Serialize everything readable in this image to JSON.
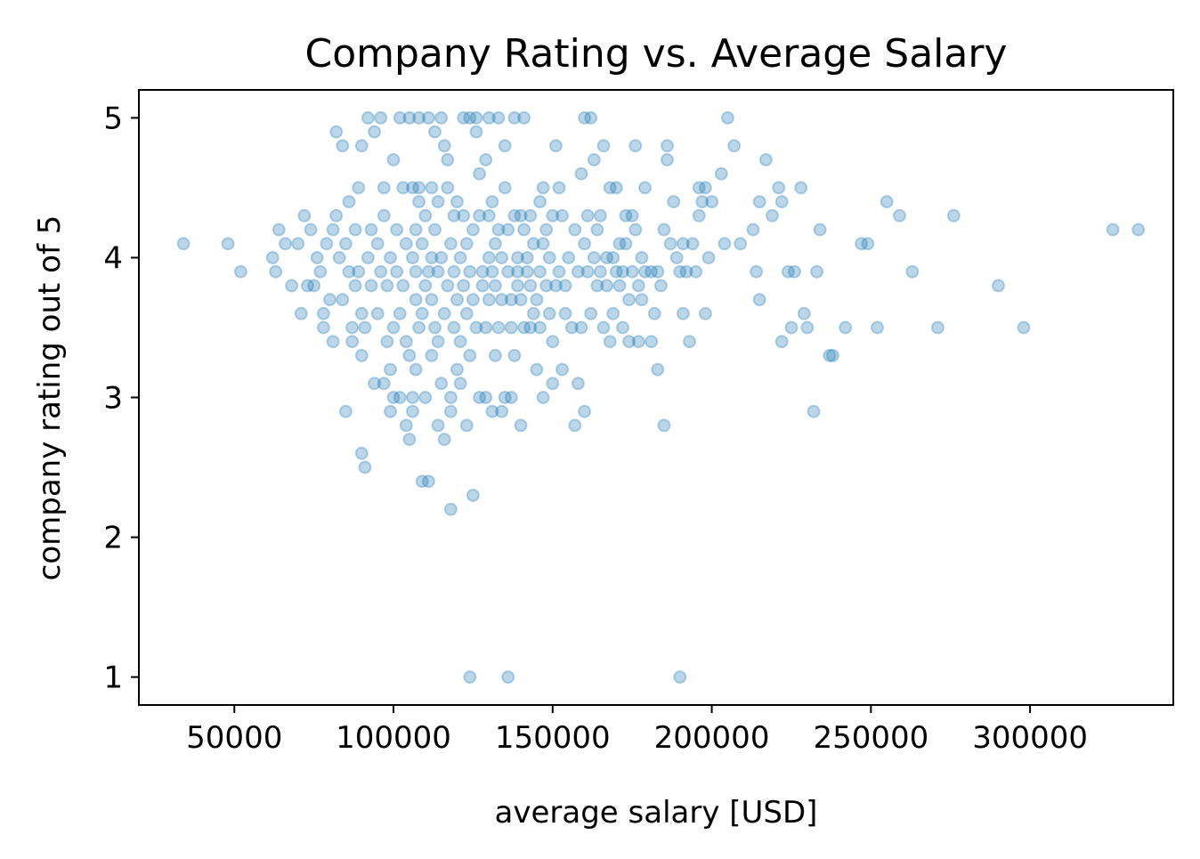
{
  "chart_data": {
    "type": "scatter",
    "title": "Company Rating vs. Average Salary",
    "xlabel": "average salary [USD]",
    "ylabel": "company rating out of 5",
    "xlim": [
      20000,
      345000
    ],
    "ylim": [
      0.8,
      5.2
    ],
    "xticks": [
      50000,
      100000,
      150000,
      200000,
      250000,
      300000
    ],
    "xtick_labels": [
      "50000",
      "100000",
      "150000",
      "200000",
      "250000",
      "300000"
    ],
    "yticks": [
      1,
      2,
      3,
      4,
      5
    ],
    "ytick_labels": [
      "1",
      "2",
      "3",
      "4",
      "5"
    ],
    "grid": false,
    "color": "#1f77b4",
    "points": [
      [
        34000,
        4.1
      ],
      [
        48000,
        4.1
      ],
      [
        52000,
        3.9
      ],
      [
        62000,
        4.0
      ],
      [
        63000,
        3.9
      ],
      [
        64000,
        4.2
      ],
      [
        66000,
        4.1
      ],
      [
        68000,
        3.8
      ],
      [
        70000,
        4.1
      ],
      [
        71000,
        3.6
      ],
      [
        72000,
        4.3
      ],
      [
        73000,
        3.8
      ],
      [
        74000,
        4.2
      ],
      [
        75000,
        3.8
      ],
      [
        76000,
        4.0
      ],
      [
        77000,
        3.9
      ],
      [
        78000,
        3.5
      ],
      [
        78000,
        3.6
      ],
      [
        79000,
        4.1
      ],
      [
        80000,
        3.7
      ],
      [
        81000,
        4.2
      ],
      [
        81000,
        3.4
      ],
      [
        82000,
        4.9
      ],
      [
        82000,
        4.3
      ],
      [
        83000,
        4.0
      ],
      [
        84000,
        3.7
      ],
      [
        84000,
        4.8
      ],
      [
        85000,
        2.9
      ],
      [
        85000,
        4.1
      ],
      [
        86000,
        3.9
      ],
      [
        86000,
        4.4
      ],
      [
        87000,
        3.5
      ],
      [
        87000,
        3.4
      ],
      [
        88000,
        4.2
      ],
      [
        88000,
        3.8
      ],
      [
        89000,
        4.5
      ],
      [
        89000,
        3.9
      ],
      [
        90000,
        3.6
      ],
      [
        90000,
        4.8
      ],
      [
        90000,
        3.3
      ],
      [
        90000,
        2.6
      ],
      [
        91000,
        2.5
      ],
      [
        91000,
        3.5
      ],
      [
        92000,
        4.0
      ],
      [
        92000,
        5.0
      ],
      [
        93000,
        3.8
      ],
      [
        93000,
        4.2
      ],
      [
        94000,
        4.9
      ],
      [
        94000,
        3.1
      ],
      [
        95000,
        3.6
      ],
      [
        95000,
        4.1
      ],
      [
        96000,
        3.9
      ],
      [
        96000,
        5.0
      ],
      [
        97000,
        4.3
      ],
      [
        97000,
        3.1
      ],
      [
        97000,
        4.5
      ],
      [
        98000,
        3.8
      ],
      [
        98000,
        3.4
      ],
      [
        99000,
        2.9
      ],
      [
        99000,
        3.2
      ],
      [
        99000,
        4.0
      ],
      [
        100000,
        3.5
      ],
      [
        100000,
        4.7
      ],
      [
        100000,
        3.0
      ],
      [
        101000,
        3.9
      ],
      [
        101000,
        4.2
      ],
      [
        102000,
        5.0
      ],
      [
        102000,
        3.6
      ],
      [
        102000,
        3.0
      ],
      [
        103000,
        4.5
      ],
      [
        103000,
        3.8
      ],
      [
        104000,
        3.4
      ],
      [
        104000,
        2.8
      ],
      [
        104000,
        4.1
      ],
      [
        105000,
        5.0
      ],
      [
        105000,
        3.3
      ],
      [
        105000,
        2.7
      ],
      [
        106000,
        4.0
      ],
      [
        106000,
        4.5
      ],
      [
        106000,
        3.0
      ],
      [
        106000,
        2.9
      ],
      [
        107000,
        3.7
      ],
      [
        107000,
        3.9
      ],
      [
        107000,
        3.2
      ],
      [
        107000,
        4.2
      ],
      [
        108000,
        5.0
      ],
      [
        108000,
        4.4
      ],
      [
        108000,
        3.5
      ],
      [
        108000,
        4.5
      ],
      [
        109000,
        2.4
      ],
      [
        109000,
        3.6
      ],
      [
        109000,
        4.1
      ],
      [
        110000,
        3.8
      ],
      [
        110000,
        4.3
      ],
      [
        110000,
        3.0
      ],
      [
        111000,
        2.4
      ],
      [
        111000,
        5.0
      ],
      [
        111000,
        3.9
      ],
      [
        112000,
        4.0
      ],
      [
        112000,
        3.7
      ],
      [
        112000,
        3.3
      ],
      [
        112000,
        4.5
      ],
      [
        113000,
        4.9
      ],
      [
        113000,
        4.2
      ],
      [
        113000,
        3.5
      ],
      [
        114000,
        3.9
      ],
      [
        114000,
        4.4
      ],
      [
        114000,
        3.4
      ],
      [
        114000,
        2.8
      ],
      [
        115000,
        5.0
      ],
      [
        115000,
        4.0
      ],
      [
        115000,
        3.1
      ],
      [
        116000,
        4.8
      ],
      [
        116000,
        3.6
      ],
      [
        116000,
        2.7
      ],
      [
        117000,
        4.7
      ],
      [
        117000,
        3.8
      ],
      [
        117000,
        4.5
      ],
      [
        118000,
        4.1
      ],
      [
        118000,
        3.0
      ],
      [
        118000,
        2.9
      ],
      [
        118000,
        2.2
      ],
      [
        119000,
        4.3
      ],
      [
        119000,
        3.9
      ],
      [
        119000,
        3.5
      ],
      [
        120000,
        3.7
      ],
      [
        120000,
        3.2
      ],
      [
        120000,
        4.4
      ],
      [
        121000,
        3.1
      ],
      [
        121000,
        4.0
      ],
      [
        121000,
        3.4
      ],
      [
        122000,
        4.3
      ],
      [
        122000,
        3.8
      ],
      [
        122000,
        5.0
      ],
      [
        123000,
        2.8
      ],
      [
        123000,
        3.6
      ],
      [
        123000,
        4.1
      ],
      [
        124000,
        1.0
      ],
      [
        124000,
        3.3
      ],
      [
        124000,
        3.9
      ],
      [
        124000,
        5.0
      ],
      [
        125000,
        2.3
      ],
      [
        125000,
        4.2
      ],
      [
        125000,
        3.7
      ],
      [
        126000,
        4.9
      ],
      [
        126000,
        3.5
      ],
      [
        126000,
        5.0
      ],
      [
        127000,
        4.3
      ],
      [
        127000,
        3.0
      ],
      [
        127000,
        4.6
      ],
      [
        128000,
        3.9
      ],
      [
        128000,
        3.8
      ],
      [
        129000,
        4.7
      ],
      [
        129000,
        3.0
      ],
      [
        129000,
        3.5
      ],
      [
        130000,
        4.0
      ],
      [
        130000,
        3.7
      ],
      [
        130000,
        4.3
      ],
      [
        130000,
        5.0
      ],
      [
        131000,
        3.9
      ],
      [
        131000,
        2.9
      ],
      [
        131000,
        4.4
      ],
      [
        132000,
        3.8
      ],
      [
        132000,
        4.1
      ],
      [
        132000,
        3.3
      ],
      [
        133000,
        4.2
      ],
      [
        133000,
        3.5
      ],
      [
        133000,
        5.0
      ],
      [
        134000,
        4.0
      ],
      [
        134000,
        3.7
      ],
      [
        134000,
        2.9
      ],
      [
        135000,
        4.5
      ],
      [
        135000,
        3.0
      ],
      [
        135000,
        4.8
      ],
      [
        136000,
        1.0
      ],
      [
        136000,
        3.9
      ],
      [
        136000,
        4.2
      ],
      [
        137000,
        3.5
      ],
      [
        137000,
        3.7
      ],
      [
        137000,
        3.0
      ],
      [
        138000,
        4.3
      ],
      [
        138000,
        3.3
      ],
      [
        138000,
        5.0
      ],
      [
        139000,
        4.0
      ],
      [
        139000,
        3.8
      ],
      [
        139000,
        3.9
      ],
      [
        140000,
        2.8
      ],
      [
        140000,
        4.3
      ],
      [
        140000,
        3.7
      ],
      [
        141000,
        5.0
      ],
      [
        141000,
        4.2
      ],
      [
        141000,
        3.5
      ],
      [
        142000,
        4.0
      ],
      [
        142000,
        3.9
      ],
      [
        143000,
        4.3
      ],
      [
        143000,
        3.5
      ],
      [
        143000,
        3.8
      ],
      [
        144000,
        3.6
      ],
      [
        144000,
        4.1
      ],
      [
        145000,
        3.2
      ],
      [
        145000,
        3.7
      ],
      [
        146000,
        4.4
      ],
      [
        146000,
        3.9
      ],
      [
        146000,
        3.5
      ],
      [
        147000,
        4.5
      ],
      [
        147000,
        4.1
      ],
      [
        147000,
        3.0
      ],
      [
        148000,
        4.2
      ],
      [
        148000,
        3.8
      ],
      [
        149000,
        3.6
      ],
      [
        149000,
        4.0
      ],
      [
        150000,
        3.4
      ],
      [
        150000,
        3.1
      ],
      [
        150000,
        4.3
      ],
      [
        151000,
        4.8
      ],
      [
        151000,
        3.8
      ],
      [
        152000,
        4.5
      ],
      [
        152000,
        3.9
      ],
      [
        153000,
        3.2
      ],
      [
        153000,
        4.3
      ],
      [
        154000,
        3.6
      ],
      [
        154000,
        3.8
      ],
      [
        155000,
        4.0
      ],
      [
        156000,
        3.5
      ],
      [
        157000,
        2.8
      ],
      [
        157000,
        4.2
      ],
      [
        158000,
        3.1
      ],
      [
        158000,
        3.9
      ],
      [
        159000,
        4.6
      ],
      [
        159000,
        3.5
      ],
      [
        160000,
        5.0
      ],
      [
        160000,
        4.1
      ],
      [
        160000,
        2.9
      ],
      [
        161000,
        3.9
      ],
      [
        161000,
        4.3
      ],
      [
        162000,
        5.0
      ],
      [
        162000,
        3.6
      ],
      [
        163000,
        4.0
      ],
      [
        163000,
        4.7
      ],
      [
        164000,
        3.8
      ],
      [
        164000,
        4.2
      ],
      [
        165000,
        3.9
      ],
      [
        165000,
        4.3
      ],
      [
        166000,
        4.8
      ],
      [
        166000,
        3.5
      ],
      [
        167000,
        4.0
      ],
      [
        167000,
        3.8
      ],
      [
        168000,
        3.4
      ],
      [
        168000,
        4.5
      ],
      [
        169000,
        3.6
      ],
      [
        169000,
        4.0
      ],
      [
        170000,
        3.9
      ],
      [
        170000,
        4.5
      ],
      [
        171000,
        4.1
      ],
      [
        171000,
        3.8
      ],
      [
        172000,
        3.5
      ],
      [
        172000,
        3.9
      ],
      [
        173000,
        4.1
      ],
      [
        173000,
        4.3
      ],
      [
        174000,
        3.4
      ],
      [
        174000,
        3.7
      ],
      [
        175000,
        4.3
      ],
      [
        175000,
        3.9
      ],
      [
        176000,
        4.8
      ],
      [
        176000,
        4.2
      ],
      [
        177000,
        3.4
      ],
      [
        177000,
        3.8
      ],
      [
        178000,
        4.0
      ],
      [
        178000,
        3.7
      ],
      [
        179000,
        4.5
      ],
      [
        179000,
        3.9
      ],
      [
        181000,
        3.4
      ],
      [
        181000,
        3.9
      ],
      [
        182000,
        3.6
      ],
      [
        183000,
        3.9
      ],
      [
        183000,
        3.2
      ],
      [
        184000,
        3.8
      ],
      [
        185000,
        4.2
      ],
      [
        185000,
        2.8
      ],
      [
        186000,
        4.8
      ],
      [
        186000,
        4.7
      ],
      [
        187000,
        4.1
      ],
      [
        188000,
        4.4
      ],
      [
        189000,
        4.0
      ],
      [
        190000,
        3.9
      ],
      [
        190000,
        1.0
      ],
      [
        191000,
        3.6
      ],
      [
        191000,
        4.1
      ],
      [
        192000,
        3.9
      ],
      [
        193000,
        3.4
      ],
      [
        194000,
        4.1
      ],
      [
        195000,
        3.9
      ],
      [
        196000,
        4.3
      ],
      [
        196000,
        4.5
      ],
      [
        197000,
        4.4
      ],
      [
        198000,
        3.6
      ],
      [
        198000,
        4.5
      ],
      [
        199000,
        4.0
      ],
      [
        200000,
        4.4
      ],
      [
        203000,
        4.6
      ],
      [
        204000,
        4.1
      ],
      [
        205000,
        5.0
      ],
      [
        207000,
        4.8
      ],
      [
        209000,
        4.1
      ],
      [
        213000,
        4.2
      ],
      [
        214000,
        3.9
      ],
      [
        215000,
        4.4
      ],
      [
        215000,
        3.7
      ],
      [
        217000,
        4.7
      ],
      [
        219000,
        4.3
      ],
      [
        221000,
        4.5
      ],
      [
        222000,
        4.4
      ],
      [
        222000,
        3.4
      ],
      [
        224000,
        3.9
      ],
      [
        225000,
        3.5
      ],
      [
        226000,
        3.9
      ],
      [
        228000,
        4.5
      ],
      [
        229000,
        3.6
      ],
      [
        230000,
        3.5
      ],
      [
        232000,
        2.9
      ],
      [
        233000,
        3.9
      ],
      [
        234000,
        4.2
      ],
      [
        237000,
        3.3
      ],
      [
        238000,
        3.3
      ],
      [
        242000,
        3.5
      ],
      [
        247000,
        4.1
      ],
      [
        249000,
        4.1
      ],
      [
        252000,
        3.5
      ],
      [
        255000,
        4.4
      ],
      [
        259000,
        4.3
      ],
      [
        263000,
        3.9
      ],
      [
        271000,
        3.5
      ],
      [
        276000,
        4.3
      ],
      [
        290000,
        3.8
      ],
      [
        298000,
        3.5
      ],
      [
        326000,
        4.2
      ],
      [
        334000,
        4.2
      ]
    ]
  }
}
